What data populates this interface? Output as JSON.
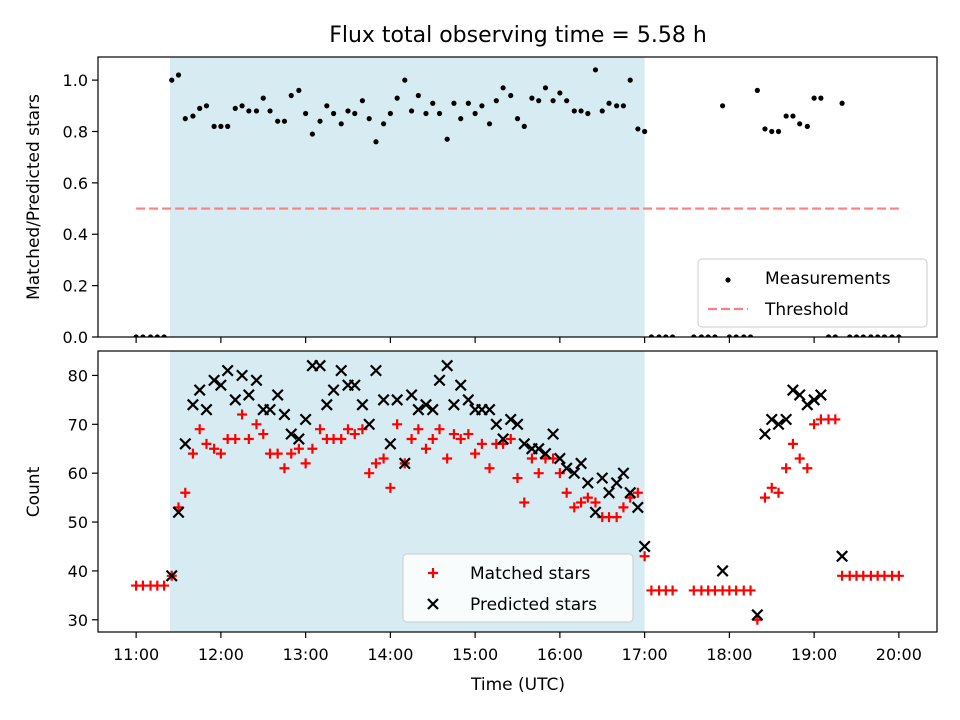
{
  "chart_data": [
    {
      "type": "scatter",
      "title": "Flux total observing time = 5.58 h",
      "xlabel": "",
      "ylabel": "Matched/Predicted stars",
      "xlim": [
        10.55,
        20.45
      ],
      "ylim": [
        0.0,
        1.09
      ],
      "yticks": [
        0.0,
        0.2,
        0.4,
        0.6,
        0.8,
        1.0
      ],
      "ytick_labels": [
        "0.0",
        "0.2",
        "0.4",
        "0.6",
        "0.8",
        "1.0"
      ],
      "shaded_span": [
        11.4,
        17.0
      ],
      "legend": {
        "placement": "lower-right",
        "entries": [
          "Measurements",
          "Threshold"
        ]
      },
      "threshold": {
        "name": "Threshold",
        "x": [
          11.0,
          20.0
        ],
        "y": 0.5,
        "color": "#ff7f7f",
        "style": "dashed"
      },
      "series": [
        {
          "name": "Measurements",
          "color": "#000000",
          "marker": "dot",
          "x": [
            11.0,
            11.08,
            11.17,
            11.25,
            11.33,
            11.42,
            11.5,
            11.58,
            11.67,
            11.75,
            11.83,
            11.92,
            12.0,
            12.08,
            12.17,
            12.25,
            12.33,
            12.42,
            12.5,
            12.58,
            12.67,
            12.75,
            12.83,
            12.92,
            13.0,
            13.08,
            13.17,
            13.25,
            13.33,
            13.42,
            13.5,
            13.58,
            13.67,
            13.75,
            13.83,
            13.92,
            14.0,
            14.08,
            14.17,
            14.25,
            14.33,
            14.42,
            14.5,
            14.58,
            14.67,
            14.75,
            14.83,
            14.92,
            15.0,
            15.08,
            15.17,
            15.25,
            15.33,
            15.42,
            15.5,
            15.58,
            15.67,
            15.75,
            15.83,
            15.92,
            16.0,
            16.08,
            16.17,
            16.25,
            16.33,
            16.42,
            16.5,
            16.58,
            16.67,
            16.75,
            16.83,
            16.92,
            17.0,
            17.08,
            17.17,
            17.25,
            17.33,
            17.58,
            17.67,
            17.75,
            17.83,
            17.92,
            18.0,
            18.08,
            18.17,
            18.25,
            18.33,
            18.42,
            18.5,
            18.58,
            18.67,
            18.75,
            18.83,
            18.92,
            19.0,
            19.08,
            19.17,
            19.25,
            19.33,
            19.42,
            19.5,
            19.58,
            19.67,
            19.75,
            19.83,
            19.92,
            20.0
          ],
          "y": [
            0.0,
            0.0,
            0.0,
            0.0,
            0.0,
            1.0,
            1.02,
            0.85,
            0.86,
            0.89,
            0.9,
            0.82,
            0.82,
            0.82,
            0.89,
            0.9,
            0.88,
            0.88,
            0.93,
            0.88,
            0.84,
            0.84,
            0.94,
            0.96,
            0.87,
            0.79,
            0.84,
            0.9,
            0.87,
            0.83,
            0.88,
            0.87,
            0.92,
            0.85,
            0.76,
            0.83,
            0.87,
            0.93,
            1.0,
            0.88,
            0.94,
            0.87,
            0.91,
            0.87,
            0.77,
            0.91,
            0.85,
            0.91,
            0.87,
            0.9,
            0.83,
            0.92,
            0.97,
            0.94,
            0.85,
            0.82,
            0.93,
            0.92,
            0.97,
            0.92,
            0.95,
            0.92,
            0.88,
            0.88,
            0.87,
            1.04,
            0.88,
            0.91,
            0.9,
            0.9,
            1.0,
            0.81,
            0.8,
            0.0,
            0.0,
            0.0,
            0.0,
            0.0,
            0.0,
            0.0,
            0.0,
            0.9,
            0.0,
            0.0,
            0.0,
            0.0,
            0.96,
            0.81,
            0.8,
            0.8,
            0.86,
            0.86,
            0.83,
            0.82,
            0.93,
            0.93,
            0.0,
            0.0,
            0.91,
            0.0,
            0.0,
            0.0,
            0.0,
            0.0,
            0.0,
            0.0,
            0.0
          ]
        }
      ]
    },
    {
      "type": "scatter",
      "title": "",
      "xlabel": "Time (UTC)",
      "ylabel": "Count",
      "xlim": [
        10.55,
        20.45
      ],
      "ylim": [
        27.5,
        85
      ],
      "yticks": [
        30,
        40,
        50,
        60,
        70,
        80
      ],
      "ytick_labels": [
        "30",
        "40",
        "50",
        "60",
        "70",
        "80"
      ],
      "xticks": [
        11,
        12,
        13,
        14,
        15,
        16,
        17,
        18,
        19,
        20
      ],
      "xtick_labels": [
        "11:00",
        "12:00",
        "13:00",
        "14:00",
        "15:00",
        "16:00",
        "17:00",
        "18:00",
        "19:00",
        "20:00"
      ],
      "shaded_span": [
        11.4,
        17.0
      ],
      "legend": {
        "placement": "lower-center",
        "entries": [
          "Matched stars",
          "Predicted stars"
        ]
      },
      "series": [
        {
          "name": "Matched stars",
          "color": "#ff0000",
          "marker": "plus",
          "x": [
            11.0,
            11.08,
            11.17,
            11.25,
            11.33,
            11.42,
            11.5,
            11.58,
            11.67,
            11.75,
            11.83,
            11.92,
            12.0,
            12.08,
            12.17,
            12.25,
            12.33,
            12.42,
            12.5,
            12.58,
            12.67,
            12.75,
            12.83,
            12.92,
            13.0,
            13.08,
            13.17,
            13.25,
            13.33,
            13.42,
            13.5,
            13.58,
            13.67,
            13.75,
            13.83,
            13.92,
            14.0,
            14.08,
            14.17,
            14.25,
            14.33,
            14.42,
            14.5,
            14.58,
            14.67,
            14.75,
            14.83,
            14.92,
            15.0,
            15.08,
            15.17,
            15.25,
            15.33,
            15.42,
            15.5,
            15.58,
            15.67,
            15.75,
            15.83,
            15.92,
            16.0,
            16.08,
            16.17,
            16.25,
            16.33,
            16.42,
            16.5,
            16.58,
            16.67,
            16.75,
            16.83,
            16.92,
            17.0,
            17.08,
            17.17,
            17.25,
            17.33,
            17.58,
            17.67,
            17.75,
            17.83,
            17.92,
            18.0,
            18.08,
            18.17,
            18.25,
            18.33,
            18.42,
            18.5,
            18.58,
            18.67,
            18.75,
            18.83,
            18.92,
            19.0,
            19.08,
            19.17,
            19.25,
            19.33,
            19.42,
            19.5,
            19.58,
            19.67,
            19.75,
            19.83,
            19.92,
            20.0
          ],
          "y": [
            37,
            37,
            37,
            37,
            37,
            39,
            53,
            56,
            64,
            69,
            66,
            65,
            64,
            67,
            67,
            72,
            67,
            70,
            68,
            64,
            64,
            61,
            64,
            65,
            62,
            65,
            69,
            67,
            67,
            67,
            69,
            68,
            69,
            60,
            62,
            63,
            57,
            70,
            62,
            67,
            69,
            65,
            67,
            69,
            63,
            68,
            67,
            68,
            64,
            66,
            61,
            66,
            66,
            67,
            59,
            54,
            63,
            60,
            63,
            63,
            60,
            56,
            53,
            54,
            55,
            54,
            51,
            51,
            51,
            53,
            55,
            56,
            43,
            36,
            36,
            36,
            36,
            36,
            36,
            36,
            36,
            36,
            36,
            36,
            36,
            36,
            30,
            55,
            57,
            56,
            61,
            66,
            63,
            61,
            70,
            71,
            71,
            71,
            39,
            39,
            39,
            39,
            39,
            39,
            39,
            39,
            39
          ]
        },
        {
          "name": "Predicted stars",
          "color": "#000000",
          "marker": "x",
          "x": [
            11.42,
            11.5,
            11.58,
            11.67,
            11.75,
            11.83,
            11.92,
            12.0,
            12.08,
            12.17,
            12.25,
            12.33,
            12.42,
            12.5,
            12.58,
            12.67,
            12.75,
            12.83,
            12.92,
            13.0,
            13.08,
            13.17,
            13.25,
            13.33,
            13.42,
            13.5,
            13.58,
            13.67,
            13.75,
            13.83,
            13.92,
            14.0,
            14.08,
            14.17,
            14.25,
            14.33,
            14.42,
            14.5,
            14.58,
            14.67,
            14.75,
            14.83,
            14.92,
            15.0,
            15.08,
            15.17,
            15.25,
            15.33,
            15.42,
            15.5,
            15.58,
            15.67,
            15.75,
            15.83,
            15.92,
            16.0,
            16.08,
            16.17,
            16.25,
            16.33,
            16.42,
            16.5,
            16.58,
            16.67,
            16.75,
            16.83,
            16.92,
            17.0,
            17.92,
            18.33,
            18.42,
            18.5,
            18.58,
            18.67,
            18.75,
            18.83,
            18.92,
            19.0,
            19.08,
            19.33
          ],
          "y": [
            39,
            52,
            66,
            74,
            77,
            73,
            79,
            78,
            81,
            75,
            80,
            76,
            79,
            73,
            73,
            76,
            72,
            68,
            67,
            71,
            82,
            82,
            74,
            77,
            81,
            78,
            78,
            74,
            70,
            81,
            75,
            66,
            75,
            62,
            76,
            73,
            74,
            73,
            79,
            82,
            74,
            78,
            75,
            73,
            73,
            73,
            70,
            67,
            71,
            70,
            66,
            65,
            65,
            64,
            68,
            63,
            61,
            60,
            62,
            58,
            52,
            59,
            56,
            58,
            60,
            56,
            53,
            45,
            40,
            31,
            68,
            71,
            70,
            71,
            77,
            76,
            74,
            75,
            76,
            43
          ]
        }
      ]
    }
  ]
}
